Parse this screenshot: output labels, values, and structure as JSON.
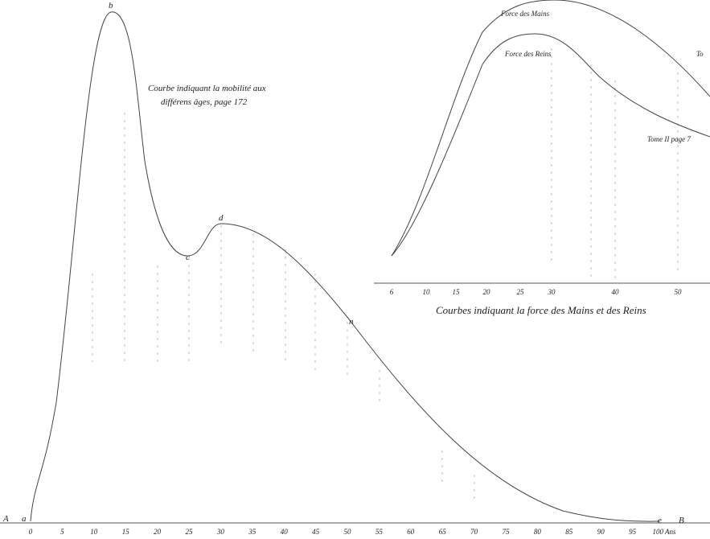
{
  "mobility_plot": {
    "title_line1": "Courbe indiquant la mobilité aux",
    "title_line2": "différens âges, page 172",
    "ticks": [
      0,
      5,
      10,
      15,
      20,
      25,
      30,
      35,
      40,
      45,
      50,
      55,
      60,
      65,
      70,
      75,
      80,
      85,
      90,
      95,
      "100 Ans"
    ],
    "point_labels": {
      "A": "A",
      "a": "a",
      "b": "b",
      "c": "c",
      "d": "d",
      "n": "n",
      "e": "e",
      "B": "B"
    }
  },
  "force_plot": {
    "title": "Courbes indiquant la force des Mains et des Reins",
    "ticks": [
      6,
      10,
      15,
      20,
      25,
      30,
      40,
      50
    ],
    "curve_labels": [
      "Force des Mains",
      "Force des Reins"
    ],
    "note": "Tome II page 7",
    "cut_label": "To"
  }
}
